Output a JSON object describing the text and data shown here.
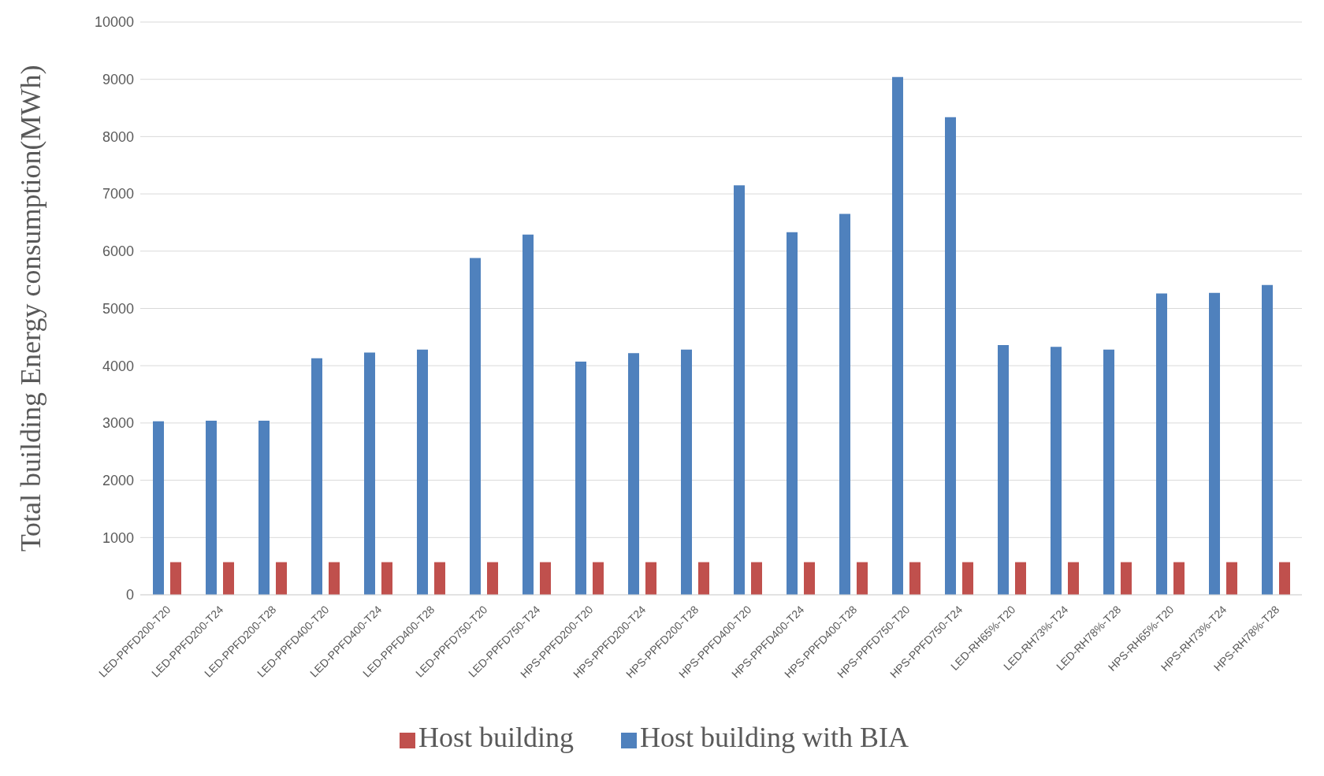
{
  "chart_data": {
    "type": "bar",
    "ylabel": "Total building Energy consumption(MWh)",
    "categories": [
      "LED-PPFD200-T20",
      "LED-PPFD200-T24",
      "LED-PPFD200-T28",
      "LED-PPFD400-T20",
      "LED-PPFD400-T24",
      "LED-PPFD400-T28",
      "LED-PPFD750-T20",
      "LED-PPFD750-T24",
      "HPS-PPFD200-T20",
      "HPS-PPFD200-T24",
      "HPS-PPFD200-T28",
      "HPS-PPFD400-T20",
      "HPS-PPFD400-T24",
      "HPS-PPFD400-T28",
      "HPS-PPFD750-T20",
      "HPS-PPFD750-T24",
      "LED-RH65%-T20",
      "LED-RH73%-T24",
      "LED-RH78%-T28",
      "HPS-RH65%-T20",
      "HPS-RH73%-T24",
      "HPS-RH78%-T28"
    ],
    "series": [
      {
        "name": "Host building with BIA",
        "color": "#4f81bd",
        "values": [
          3030,
          3040,
          3040,
          4130,
          4230,
          4280,
          5880,
          6290,
          4070,
          4220,
          4280,
          7150,
          6330,
          6650,
          9040,
          8340,
          4360,
          4330,
          4280,
          5260,
          5270,
          5410
        ]
      },
      {
        "name": "Host building",
        "color": "#c0504d",
        "values": [
          570,
          570,
          570,
          570,
          570,
          570,
          570,
          570,
          570,
          570,
          570,
          570,
          570,
          570,
          570,
          570,
          570,
          570,
          570,
          570,
          570,
          570
        ]
      }
    ],
    "ylim": [
      0,
      10000
    ],
    "yticks": [
      0,
      1000,
      2000,
      3000,
      4000,
      5000,
      6000,
      7000,
      8000,
      9000,
      10000
    ],
    "grid": "y",
    "legend": "bottom"
  }
}
